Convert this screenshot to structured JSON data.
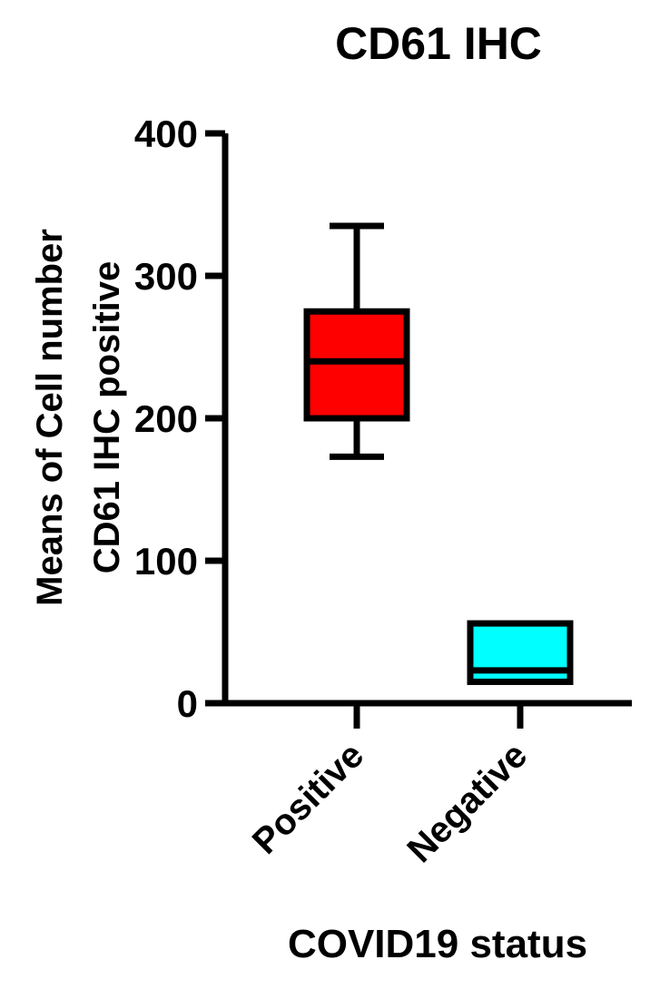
{
  "chart_data": {
    "type": "box",
    "title": "CD61 IHC",
    "xlabel": "COVID19 status",
    "ylabel": [
      "Means of Cell number",
      "CD61 IHC positive"
    ],
    "ylim": [
      0,
      400
    ],
    "yticks": [
      0,
      100,
      200,
      300,
      400
    ],
    "categories": [
      "Positive",
      "Negative"
    ],
    "boxes": [
      {
        "category": "Positive",
        "min": 173,
        "q1": 200,
        "median": 240,
        "q3": 275,
        "max": 335,
        "color": "#ff0000"
      },
      {
        "category": "Negative",
        "min": 15,
        "q1": 15,
        "median": 23,
        "q3": 56,
        "max": 56,
        "color": "#00ffff"
      }
    ],
    "grid": false,
    "legend": "none"
  }
}
